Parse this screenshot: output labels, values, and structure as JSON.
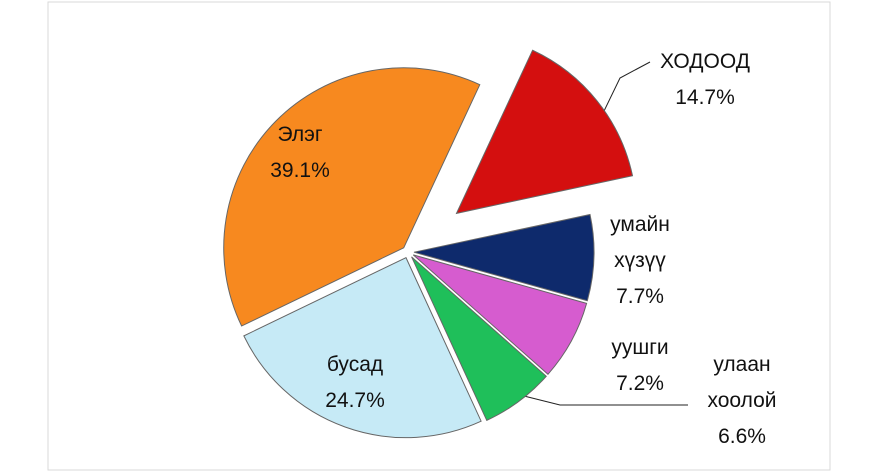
{
  "chart_data": {
    "type": "pie",
    "categories": [
      "ХОДООД",
      "умайн хүзүү",
      "уушги",
      "улаан хоолой",
      "бусад",
      "Элэг"
    ],
    "values": [
      14.7,
      7.7,
      7.2,
      6.6,
      24.7,
      39.1
    ],
    "value_labels": [
      "14.7%",
      "7.7%",
      "7.2%",
      "6.6%",
      "24.7%",
      "39.1%"
    ],
    "colors": [
      "#d40f0f",
      "#0e2a6c",
      "#d65ccf",
      "#1fbf5a",
      "#c6eaf6",
      "#f7891f"
    ]
  }
}
